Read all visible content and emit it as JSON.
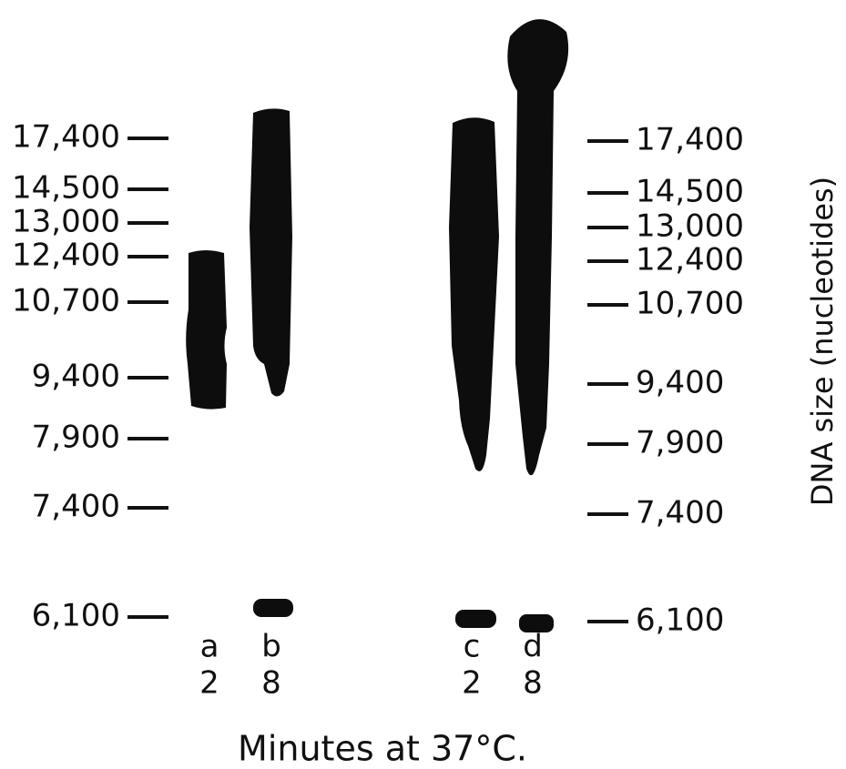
{
  "markers_left": [
    "17,400",
    "14,500",
    "13,000",
    "12,400",
    "10,700",
    "9,400",
    "7,900",
    "7,400",
    "6,100"
  ],
  "markers_right": [
    "17,400",
    "14,500",
    "13,000",
    "12,400",
    "10,700",
    "9,400",
    "7,900",
    "7,400",
    "6,100"
  ],
  "lanes": [
    {
      "letter": "a",
      "minutes": "2"
    },
    {
      "letter": "b",
      "minutes": "8"
    },
    {
      "letter": "c",
      "minutes": "2"
    },
    {
      "letter": "d",
      "minutes": "8"
    }
  ],
  "axis_title": "DNA size (nucleotides)",
  "caption": "Minutes at 37°C."
}
